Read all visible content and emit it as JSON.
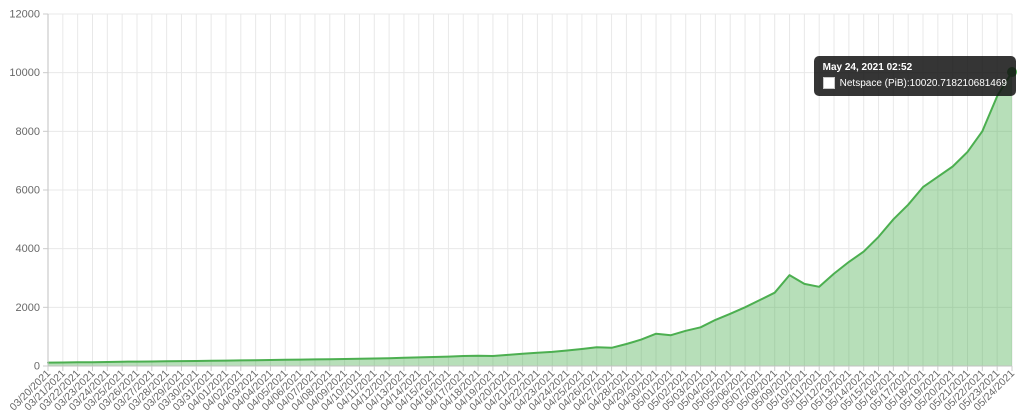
{
  "tooltip": {
    "title": "May 24, 2021 02:52",
    "series_label": "Netspace (PiB)",
    "separator": ": ",
    "value": "10020.718210681469"
  },
  "chart_data": {
    "type": "area",
    "title": "",
    "xlabel": "",
    "ylabel": "",
    "ylim": [
      0,
      12000
    ],
    "yticks": [
      0,
      2000,
      4000,
      6000,
      8000,
      10000,
      12000
    ],
    "grid": true,
    "legend_position": "tooltip-only",
    "colors": {
      "line": "#4caf50",
      "fill": "rgba(76,175,80,0.40)",
      "grid": "#e8e8e8",
      "axis": "#c0c0c0",
      "tick": "#cccccc",
      "tick_text": "#686868",
      "highlight_dot": "#4caf50"
    },
    "x": [
      "03/20/2021",
      "03/21/2021",
      "03/22/2021",
      "03/23/2021",
      "03/24/2021",
      "03/25/2021",
      "03/26/2021",
      "03/27/2021",
      "03/28/2021",
      "03/29/2021",
      "03/30/2021",
      "03/31/2021",
      "04/01/2021",
      "04/02/2021",
      "04/03/2021",
      "04/04/2021",
      "04/05/2021",
      "04/06/2021",
      "04/07/2021",
      "04/08/2021",
      "04/09/2021",
      "04/10/2021",
      "04/11/2021",
      "04/12/2021",
      "04/13/2021",
      "04/14/2021",
      "04/15/2021",
      "04/16/2021",
      "04/17/2021",
      "04/18/2021",
      "04/19/2021",
      "04/20/2021",
      "04/21/2021",
      "04/22/2021",
      "04/23/2021",
      "04/24/2021",
      "04/25/2021",
      "04/26/2021",
      "04/27/2021",
      "04/28/2021",
      "04/29/2021",
      "04/30/2021",
      "05/01/2021",
      "05/02/2021",
      "05/03/2021",
      "05/04/2021",
      "05/05/2021",
      "05/06/2021",
      "05/07/2021",
      "05/08/2021",
      "05/09/2021",
      "05/10/2021",
      "05/11/2021",
      "05/12/2021",
      "05/13/2021",
      "05/14/2021",
      "05/15/2021",
      "05/16/2021",
      "05/17/2021",
      "05/18/2021",
      "05/19/2021",
      "05/20/2021",
      "05/21/2021",
      "05/22/2021",
      "05/23/2021",
      "05/24/2021"
    ],
    "series": [
      {
        "name": "Netspace (PiB)",
        "values": [
          115,
          120,
          125,
          130,
          138,
          145,
          150,
          155,
          160,
          168,
          172,
          178,
          185,
          192,
          198,
          205,
          210,
          218,
          225,
          232,
          240,
          248,
          255,
          265,
          278,
          292,
          308,
          322,
          340,
          350,
          340,
          380,
          420,
          450,
          480,
          530,
          580,
          640,
          620,
          750,
          900,
          1100,
          1050,
          1200,
          1320,
          1570,
          1780,
          2000,
          2250,
          2500,
          3100,
          2800,
          2700,
          3150,
          3550,
          3900,
          4400,
          5000,
          5500,
          6100,
          6450,
          6800,
          7300,
          8000,
          9200,
          10020.718210681469
        ]
      }
    ],
    "highlight": {
      "x": "05/24/2021",
      "x_index": 65,
      "value": 10020.718210681469
    }
  }
}
